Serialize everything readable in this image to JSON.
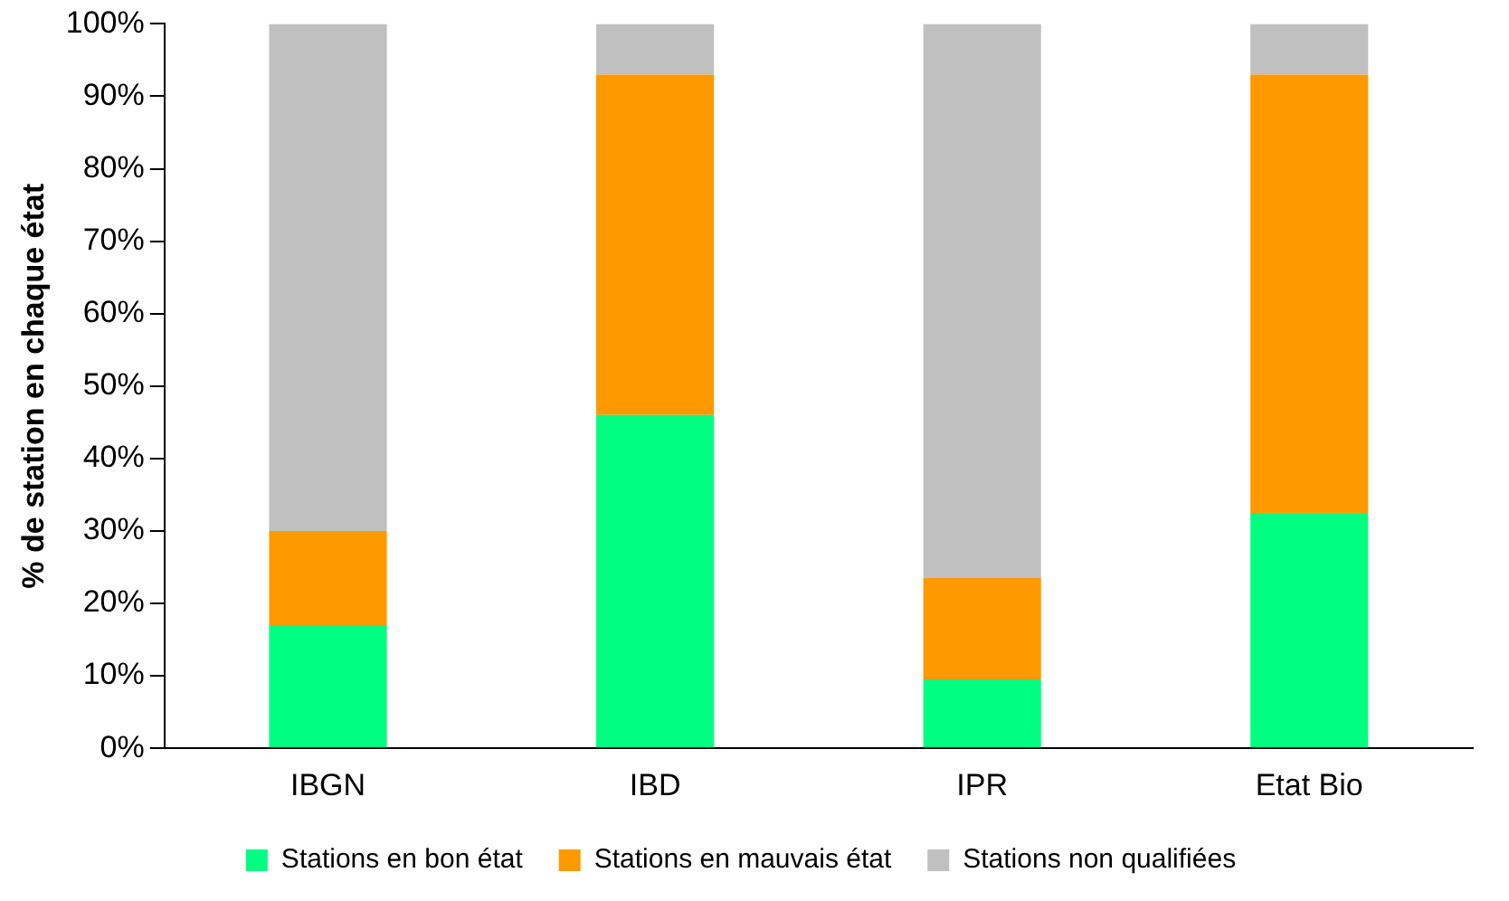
{
  "chart_data": {
    "type": "bar",
    "stacked": true,
    "ylabel": "% de station en chaque état",
    "categories": [
      "IBGN",
      "IBD",
      "IPR",
      "Etat Bio"
    ],
    "series": [
      {
        "name": "Stations en bon état",
        "color": "#00ff80",
        "values": [
          17,
          46,
          9.5,
          32.5
        ]
      },
      {
        "name": "Stations en mauvais état",
        "color": "#ff9900",
        "values": [
          13,
          47,
          14,
          60.5
        ]
      },
      {
        "name": "Stations non qualifiées",
        "color": "#c0c0c0",
        "values": [
          70,
          7,
          76.5,
          7
        ]
      }
    ],
    "ylim": [
      0,
      100
    ],
    "yticks": [
      {
        "value": 0,
        "label": "0%"
      },
      {
        "value": 10,
        "label": "10%"
      },
      {
        "value": 20,
        "label": "20%"
      },
      {
        "value": 30,
        "label": "30%"
      },
      {
        "value": 40,
        "label": "40%"
      },
      {
        "value": 50,
        "label": "50%"
      },
      {
        "value": 60,
        "label": "60%"
      },
      {
        "value": 70,
        "label": "70%"
      },
      {
        "value": 80,
        "label": "80%"
      },
      {
        "value": 90,
        "label": "90%"
      },
      {
        "value": 100,
        "label": "100%"
      }
    ],
    "grid": false,
    "legend": "bottom"
  }
}
